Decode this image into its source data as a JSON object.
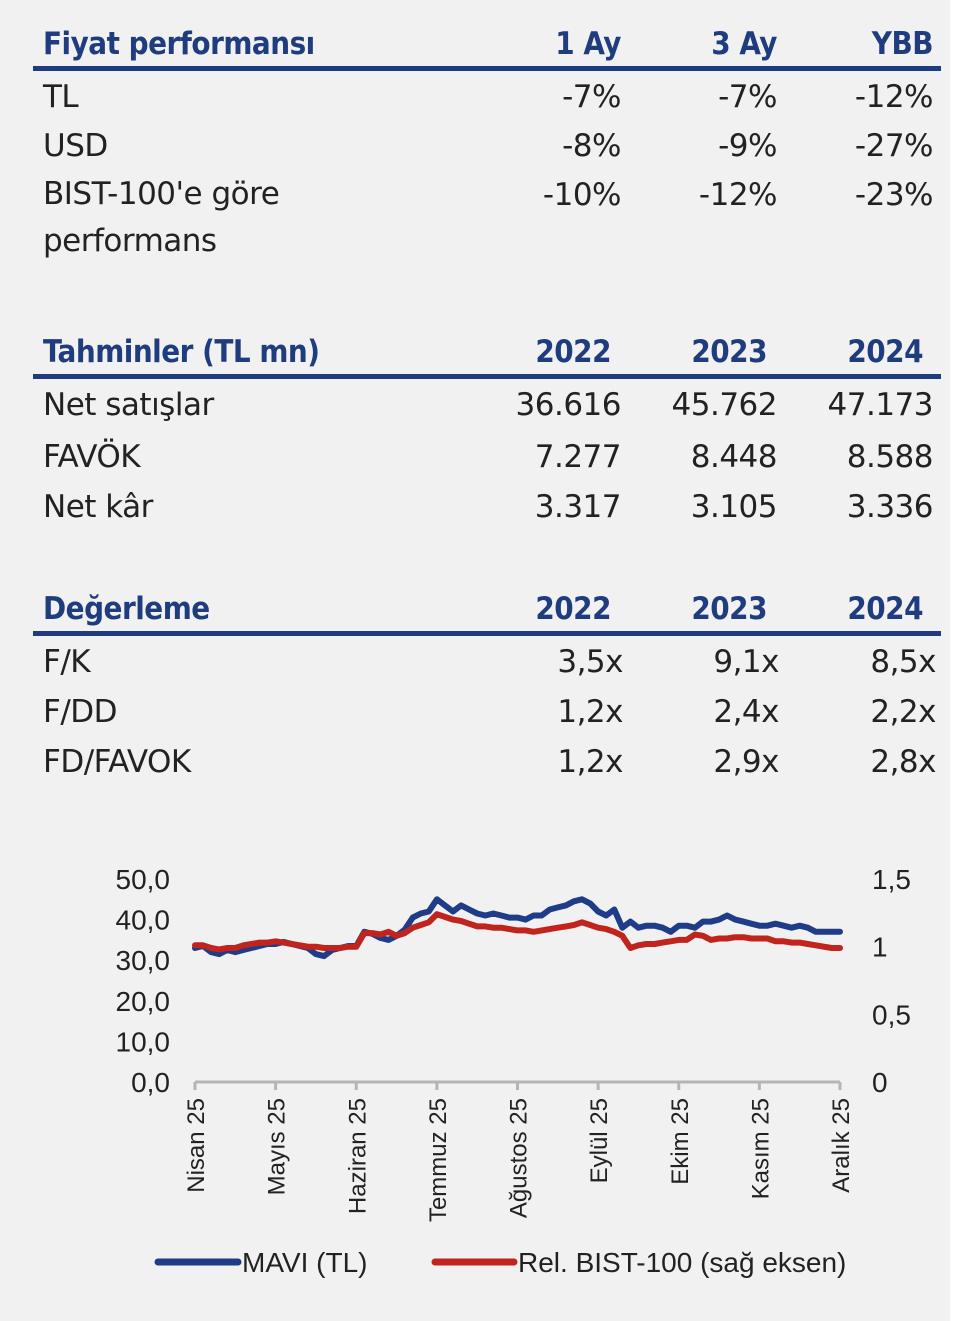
{
  "price_performance": {
    "title": "Fiyat performansı",
    "columns": [
      "1 Ay",
      "3 Ay",
      "YBB"
    ],
    "rows": [
      {
        "label": "TL",
        "values": [
          "-7%",
          "-7%",
          "-12%"
        ]
      },
      {
        "label": "USD",
        "values": [
          "-8%",
          "-9%",
          "-27%"
        ]
      },
      {
        "label": "BIST-100'e göre",
        "label2": "performans",
        "values": [
          "-10%",
          "-12%",
          "-23%"
        ]
      }
    ]
  },
  "estimates": {
    "title": "Tahminler (TL mn)",
    "columns": [
      "2022",
      "2023",
      "2024"
    ],
    "rows": [
      {
        "label": "Net satışlar",
        "values": [
          "36.616",
          "45.762",
          "47.173"
        ]
      },
      {
        "label": "FAVÖK",
        "values": [
          "7.277",
          "8.448",
          "8.588"
        ]
      },
      {
        "label": "Net kâr",
        "values": [
          "3.317",
          "3.105",
          "3.336"
        ]
      }
    ]
  },
  "valuation": {
    "title": "Değerleme",
    "columns": [
      "2022",
      "2023",
      "2024"
    ],
    "rows": [
      {
        "label": "F/K",
        "values": [
          "3,5x",
          "9,1x",
          "8,5x"
        ]
      },
      {
        "label": "F/DD",
        "values": [
          "1,2x",
          "2,4x",
          "2,2x"
        ]
      },
      {
        "label": "FD/FAVOK",
        "values": [
          "1,2x",
          "2,9x",
          "2,8x"
        ]
      }
    ]
  },
  "chart_data": {
    "type": "line",
    "title": "",
    "categories": [
      "Nisan 25",
      "Mayıs 25",
      "Haziran 25",
      "Temmuz 25",
      "Ağustos 25",
      "Eylül 25",
      "Ekim 25",
      "Kasım 25",
      "Aralık 25"
    ],
    "y_left": {
      "ticks": [
        "0,0",
        "10,0",
        "20,0",
        "30,0",
        "40,0",
        "50,0"
      ],
      "range": [
        0,
        50
      ]
    },
    "y_right": {
      "ticks": [
        "0",
        "0,5",
        "1",
        "1,5"
      ],
      "range": [
        0,
        1.5
      ]
    },
    "grid": false,
    "legend_position": "bottom",
    "series": [
      {
        "name": "MAVI (TL)",
        "axis": "left",
        "color": "#1f3c88",
        "x": [
          0,
          0.1,
          0.2,
          0.3,
          0.4,
          0.5,
          0.6,
          0.7,
          0.8,
          0.9,
          1.0,
          1.1,
          1.2,
          1.3,
          1.4,
          1.5,
          1.6,
          1.7,
          1.8,
          1.9,
          2.0,
          2.1,
          2.2,
          2.3,
          2.4,
          2.5,
          2.6,
          2.7,
          2.8,
          2.9,
          3.0,
          3.1,
          3.2,
          3.3,
          3.4,
          3.5,
          3.6,
          3.7,
          3.8,
          3.9,
          4.0,
          4.1,
          4.2,
          4.3,
          4.4,
          4.5,
          4.6,
          4.7,
          4.8,
          4.9,
          5.0,
          5.1,
          5.2,
          5.3,
          5.4,
          5.5,
          5.6,
          5.7,
          5.8,
          5.9,
          6.0,
          6.1,
          6.2,
          6.3,
          6.4,
          6.5,
          6.6,
          6.7,
          6.8,
          6.9,
          7.0,
          7.1,
          7.2,
          7.3,
          7.4,
          7.5,
          7.6,
          7.7,
          7.8,
          7.9,
          8.0
        ],
        "values": [
          33,
          33.5,
          32,
          31.5,
          32.5,
          32,
          32.5,
          33,
          33.5,
          34,
          34,
          34.5,
          34,
          33.5,
          33,
          31.5,
          31,
          32.5,
          33,
          33.5,
          33.5,
          37,
          36.5,
          35.5,
          35,
          36,
          37.5,
          40.5,
          41.5,
          42,
          45,
          43.5,
          42,
          43.5,
          42.5,
          41.5,
          41,
          41.5,
          41,
          40.5,
          40.5,
          40,
          41,
          41,
          42.5,
          43,
          43.5,
          44.5,
          45,
          44,
          42,
          41,
          42.5,
          38,
          39.5,
          38,
          38.5,
          38.5,
          38,
          37,
          38.5,
          38.5,
          38,
          39.5,
          39.5,
          40,
          41,
          40,
          39.5,
          39,
          38.5,
          38.5,
          39,
          38.5,
          38,
          38.5,
          38,
          37,
          37,
          37,
          37
        ]
      },
      {
        "name": "Rel. BIST-100 (sağ eksen)",
        "axis": "right",
        "color": "#c0241c",
        "x": [
          0,
          0.1,
          0.2,
          0.3,
          0.4,
          0.5,
          0.6,
          0.7,
          0.8,
          0.9,
          1.0,
          1.1,
          1.2,
          1.3,
          1.4,
          1.5,
          1.6,
          1.7,
          1.8,
          1.9,
          2.0,
          2.1,
          2.2,
          2.3,
          2.4,
          2.5,
          2.6,
          2.7,
          2.8,
          2.9,
          3.0,
          3.1,
          3.2,
          3.3,
          3.4,
          3.5,
          3.6,
          3.7,
          3.8,
          3.9,
          4.0,
          4.1,
          4.2,
          4.3,
          4.4,
          4.5,
          4.6,
          4.7,
          4.8,
          4.9,
          5.0,
          5.1,
          5.2,
          5.3,
          5.4,
          5.5,
          5.6,
          5.7,
          5.8,
          5.9,
          6.0,
          6.1,
          6.2,
          6.3,
          6.4,
          6.5,
          6.6,
          6.7,
          6.8,
          6.9,
          7.0,
          7.1,
          7.2,
          7.3,
          7.4,
          7.5,
          7.6,
          7.7,
          7.8,
          7.9,
          8.0
        ],
        "values": [
          1.01,
          1.01,
          0.99,
          0.98,
          0.99,
          0.99,
          1.01,
          1.02,
          1.03,
          1.03,
          1.04,
          1.03,
          1.02,
          1.01,
          1.0,
          1.0,
          0.99,
          0.99,
          0.99,
          1.0,
          1.0,
          1.1,
          1.1,
          1.09,
          1.11,
          1.08,
          1.1,
          1.14,
          1.16,
          1.18,
          1.24,
          1.22,
          1.2,
          1.19,
          1.17,
          1.15,
          1.15,
          1.14,
          1.14,
          1.13,
          1.12,
          1.12,
          1.11,
          1.12,
          1.13,
          1.14,
          1.15,
          1.16,
          1.18,
          1.16,
          1.14,
          1.13,
          1.11,
          1.08,
          0.99,
          1.01,
          1.02,
          1.02,
          1.03,
          1.04,
          1.05,
          1.05,
          1.09,
          1.08,
          1.05,
          1.06,
          1.06,
          1.07,
          1.07,
          1.06,
          1.06,
          1.06,
          1.04,
          1.04,
          1.03,
          1.03,
          1.02,
          1.01,
          1.0,
          0.99,
          0.99
        ]
      }
    ]
  }
}
